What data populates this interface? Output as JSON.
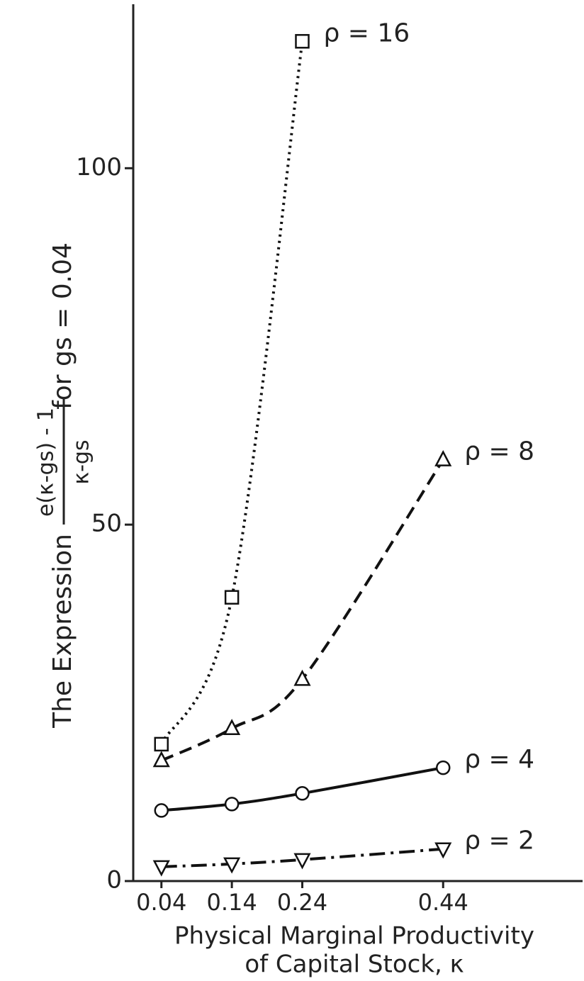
{
  "chart_data": {
    "type": "line",
    "ylabel": {
      "prefix": "The Expression",
      "numerator": "e(κ-gs) - 1",
      "denominator": "κ-gs",
      "suffix": "for gs = 0.04"
    },
    "xlabel": [
      "Physical Marginal Productivity",
      "of Capital Stock, κ"
    ],
    "x": [
      0.04,
      0.14,
      0.24,
      0.44
    ],
    "xlim": [
      0,
      0.638
    ],
    "xticks": [
      0.04,
      0.14,
      0.24,
      0.44
    ],
    "ylim": [
      0,
      123
    ],
    "yticks": [
      0,
      50,
      100
    ],
    "grid": false,
    "series": [
      {
        "name": "ρ = 16",
        "color": "#111",
        "marker": "square",
        "dash": "3 6",
        "values": [
          19.2,
          39.8,
          117.8,
          null
        ]
      },
      {
        "name": "ρ = 8",
        "color": "#111",
        "marker": "triangle",
        "dash": "18 10",
        "values": [
          16.9,
          21.4,
          28.3,
          59.1
        ]
      },
      {
        "name": "ρ = 4",
        "color": "#111",
        "marker": "circle",
        "dash": "",
        "values": [
          9.9,
          10.8,
          12.3,
          15.9
        ]
      },
      {
        "name": "ρ = 2",
        "color": "#111",
        "marker": "triangle-down",
        "dash": "22 8 4 8",
        "values": [
          2.0,
          2.4,
          3.0,
          4.5
        ]
      }
    ]
  }
}
